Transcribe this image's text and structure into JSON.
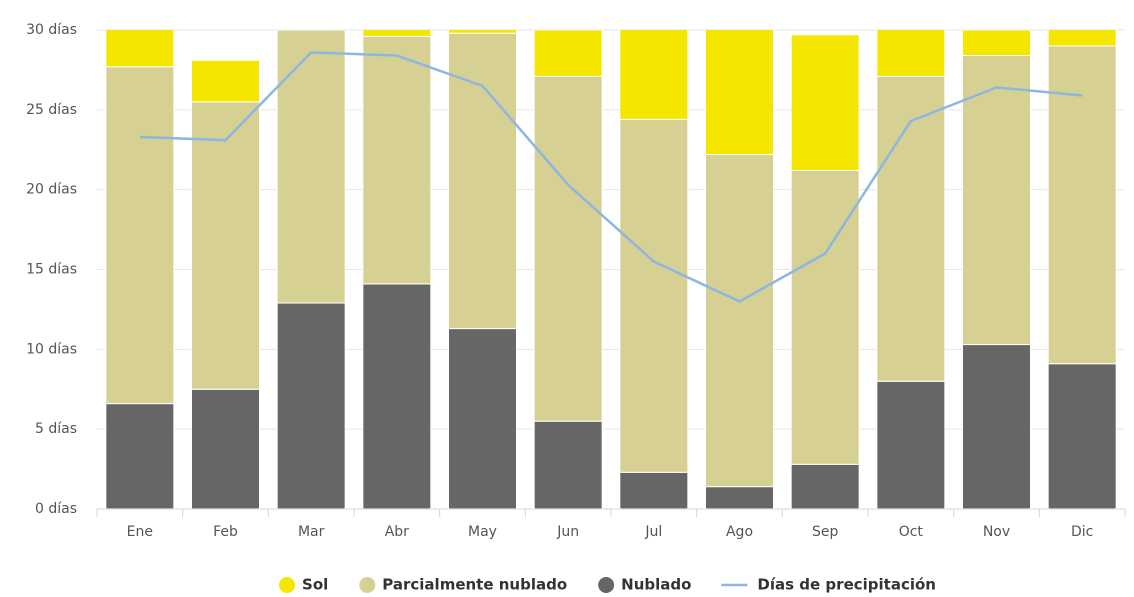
{
  "chart_data": {
    "type": "stacked_bar_line",
    "categories": [
      "Ene",
      "Feb",
      "Mar",
      "Abr",
      "May",
      "Jun",
      "Jul",
      "Ago",
      "Sep",
      "Oct",
      "Nov",
      "Dic"
    ],
    "series": [
      {
        "name": "Nublado",
        "color": "#666666",
        "values": [
          6.6,
          7.5,
          12.9,
          14.1,
          11.3,
          5.5,
          2.3,
          1.4,
          2.8,
          8.0,
          10.3,
          9.1
        ]
      },
      {
        "name": "Parcialmente nublado",
        "color": "#d6d192",
        "values": [
          21.1,
          18.0,
          17.1,
          15.5,
          18.5,
          21.6,
          22.1,
          20.8,
          18.4,
          19.1,
          18.1,
          19.9
        ]
      },
      {
        "name": "Sol",
        "color": "#f5e600",
        "values": [
          3.3,
          2.6,
          1.0,
          0.5,
          1.2,
          2.9,
          6.6,
          8.8,
          8.5,
          3.9,
          1.6,
          2.0
        ]
      },
      {
        "name": "Días de precipitación",
        "type": "line",
        "color": "#8db6e2",
        "values": [
          23.3,
          23.1,
          28.6,
          28.4,
          26.5,
          20.3,
          15.5,
          13.0,
          16.0,
          24.3,
          26.4,
          25.9
        ]
      }
    ],
    "legend_order": [
      2,
      1,
      0,
      3
    ],
    "ylim": [
      0,
      30
    ],
    "yticks": [
      {
        "value": 0,
        "label": "0 días"
      },
      {
        "value": 5,
        "label": "5 días"
      },
      {
        "value": 10,
        "label": "10 días"
      },
      {
        "value": 15,
        "label": "15 días"
      },
      {
        "value": 20,
        "label": "20 días"
      },
      {
        "value": 25,
        "label": "25 días"
      },
      {
        "value": 30,
        "label": "30 días"
      }
    ],
    "grid": true
  }
}
